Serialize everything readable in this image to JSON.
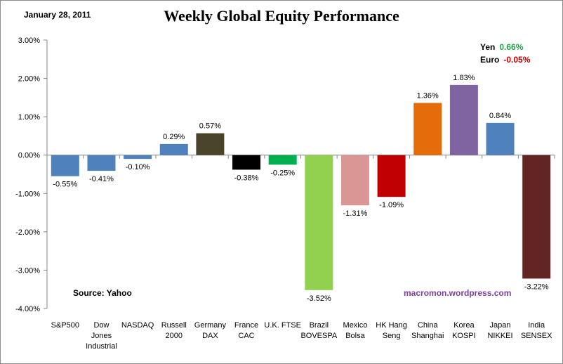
{
  "header": {
    "date": "January 28, 2011",
    "title": "Weekly Global Equity Performance"
  },
  "fx": {
    "yen": {
      "label": "Yen",
      "value": "0.66%",
      "color": "#1fa34a"
    },
    "euro": {
      "label": "Euro",
      "value": "-0.05%",
      "color": "#c00000"
    }
  },
  "footer": {
    "source": "Source:  Yahoo",
    "credit": "macromon.wordpress.com"
  },
  "chart_data": {
    "type": "bar",
    "title": "Weekly Global Equity Performance",
    "xlabel": "",
    "ylabel": "",
    "ylim": [
      -4,
      3
    ],
    "yticks": [
      3,
      2,
      1,
      0,
      -1,
      -2,
      -3,
      -4
    ],
    "ytick_labels": [
      "3.00%",
      "2.00%",
      "1.00%",
      "0.00%",
      "-1.00%",
      "-2.00%",
      "-3.00%",
      "-4.00%"
    ],
    "grid": false,
    "categories": [
      [
        "S&P500"
      ],
      [
        "Dow",
        "Jones",
        "Industrial"
      ],
      [
        "NASDAQ"
      ],
      [
        "Russell",
        "2000"
      ],
      [
        "Germany",
        "DAX"
      ],
      [
        "France",
        "CAC"
      ],
      [
        "U.K. FTSE"
      ],
      [
        "Brazil",
        "BOVESPA"
      ],
      [
        "Mexico",
        "Bolsa"
      ],
      [
        "HK Hang",
        "Seng"
      ],
      [
        "China",
        "Shanghai"
      ],
      [
        "Korea",
        "KOSPI"
      ],
      [
        "Japan",
        "NIKKEI"
      ],
      [
        "India",
        "SENSEX"
      ]
    ],
    "values": [
      -0.55,
      -0.41,
      -0.1,
      0.29,
      0.57,
      -0.38,
      -0.25,
      -3.52,
      -1.31,
      -1.09,
      1.36,
      1.83,
      0.84,
      -3.22
    ],
    "value_labels": [
      "-0.55%",
      "-0.41%",
      "-0.10%",
      "0.29%",
      "0.57%",
      "-0.38%",
      "-0.25%",
      "-3.52%",
      "-1.31%",
      "-1.09%",
      "1.36%",
      "1.83%",
      "0.84%",
      "-3.22%"
    ],
    "colors": [
      "#4f81bd",
      "#4f81bd",
      "#4f81bd",
      "#4f81bd",
      "#4a452a",
      "#000000",
      "#00b050",
      "#92d050",
      "#d99694",
      "#c00000",
      "#e46c0a",
      "#8064a2",
      "#4f81bd",
      "#632523"
    ]
  }
}
